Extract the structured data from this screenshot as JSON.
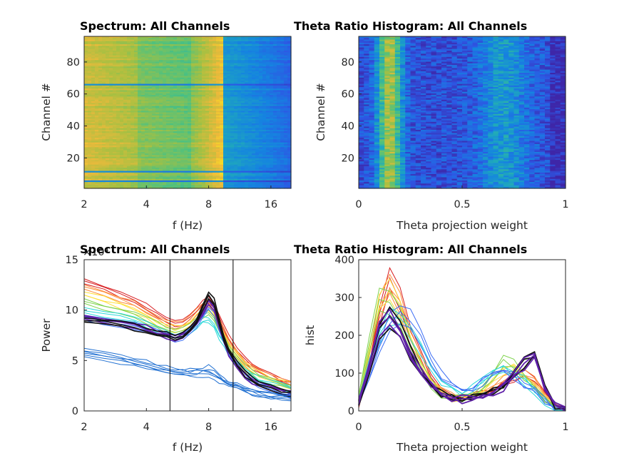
{
  "colors": {
    "axis": "#262626",
    "parula_low": "#3e26a8",
    "parula_high": "#f9fb15",
    "dim_series": "#1f6fd1",
    "marker_line": "#000000"
  },
  "chart_data": [
    {
      "type": "heatmap",
      "title": "Spectrum: All Channels",
      "xlabel": "f (Hz)",
      "ylabel": "Channel #",
      "x_scale": "log2",
      "xlim": [
        2,
        20
      ],
      "ylim": [
        1,
        96
      ],
      "x_ticks": [
        "2",
        "4",
        "8",
        "16"
      ],
      "y_ticks": [
        "20",
        "40",
        "60",
        "80"
      ],
      "colormap": "parula",
      "description_values": {
        "low_freq_band_hz": [
          2,
          3.5
        ],
        "theta_peak_hz": 8,
        "low_power_channels": [
          5,
          11,
          66
        ]
      }
    },
    {
      "type": "heatmap",
      "title": "Theta Ratio Histogram: All Channels",
      "xlabel": "Theta projection weight",
      "ylabel": "Channel #",
      "xlim": [
        0,
        1
      ],
      "ylim": [
        1,
        96
      ],
      "x_ticks": [
        "0",
        "0.5",
        "1"
      ],
      "y_ticks": [
        "20",
        "40",
        "60",
        "80"
      ],
      "colormap": "parula",
      "description_values": {
        "peak_weight": 0.15,
        "second_peak_weight": 0.85
      }
    },
    {
      "type": "line",
      "title": "Spectrum: All Channels",
      "xlabel": "f (Hz)",
      "ylabel": "Power",
      "exponent_label": "×10⁴",
      "x_scale": "log2",
      "xlim": [
        2,
        20
      ],
      "ylim": [
        0,
        150000
      ],
      "x_ticks": [
        "2",
        "4",
        "8",
        "16"
      ],
      "y_ticks": [
        "0",
        "5",
        "10",
        "15"
      ],
      "vlines_hz": [
        5.2,
        10.5
      ],
      "x": [
        2,
        2.5,
        3,
        3.5,
        4,
        4.5,
        5,
        5.5,
        6,
        6.5,
        7,
        7.5,
        8,
        8.5,
        9,
        9.5,
        10,
        11,
        12,
        13,
        14,
        16,
        18,
        20
      ],
      "series": [
        {
          "color": "#d7191c",
          "values": [
            130000,
            122000,
            116000,
            110000,
            103000,
            96000,
            90000,
            87000,
            88000,
            93000,
            100000,
            106000,
            110000,
            104000,
            92000,
            82000,
            72000,
            60000,
            50000,
            44000,
            40000,
            35000,
            31000,
            28000
          ]
        },
        {
          "color": "#fd8d3c",
          "values": [
            124000,
            117000,
            111000,
            106000,
            99000,
            93000,
            87000,
            85000,
            86000,
            91000,
            98000,
            104000,
            107000,
            101000,
            89000,
            79000,
            69000,
            57000,
            48000,
            42000,
            38000,
            33000,
            29000,
            26000
          ]
        },
        {
          "color": "#fee03b",
          "values": [
            116000,
            110000,
            105000,
            100000,
            94000,
            88000,
            83000,
            81000,
            82000,
            87000,
            93000,
            99000,
            101000,
            95000,
            84000,
            74000,
            65000,
            54000,
            45000,
            40000,
            36000,
            31000,
            28000,
            25000
          ]
        },
        {
          "color": "#7fd34e",
          "values": [
            108000,
            103000,
            99000,
            95000,
            90000,
            85000,
            80000,
            78000,
            79000,
            84000,
            90000,
            95000,
            97000,
            91000,
            80000,
            71000,
            62000,
            51000,
            43000,
            38000,
            34000,
            30000,
            27000,
            24000
          ]
        },
        {
          "color": "#2bd9d9",
          "values": [
            100000,
            96000,
            93000,
            90000,
            86000,
            81000,
            77000,
            74000,
            76000,
            80000,
            85000,
            90000,
            91000,
            85000,
            74000,
            66000,
            58000,
            48000,
            40000,
            36000,
            32000,
            28000,
            25000,
            22000
          ]
        },
        {
          "color": "#3a6cf4",
          "values": [
            92000,
            89000,
            86000,
            84000,
            81000,
            77000,
            74000,
            72000,
            74000,
            79000,
            86000,
            95000,
            103000,
            97000,
            82000,
            68000,
            57000,
            44000,
            35000,
            29000,
            25000,
            21000,
            18000,
            15000
          ]
        },
        {
          "color": "#5e1fa8",
          "values": [
            93000,
            90000,
            87000,
            85000,
            82000,
            78000,
            75000,
            73000,
            75000,
            80000,
            88000,
            98000,
            108000,
            102000,
            85000,
            70000,
            58000,
            45000,
            36000,
            30000,
            26000,
            22000,
            19000,
            16000
          ]
        },
        {
          "color": "#111111",
          "values": [
            90000,
            88000,
            86000,
            83000,
            80000,
            77000,
            75000,
            73000,
            75000,
            81000,
            90000,
            102000,
            115000,
            108000,
            88000,
            72000,
            60000,
            46000,
            37000,
            31000,
            27000,
            23000,
            20000,
            17000
          ]
        },
        {
          "color": "#1f6fd1",
          "values": [
            60000,
            57000,
            53000,
            50000,
            47000,
            44000,
            42000,
            40000,
            39000,
            39000,
            40000,
            41000,
            42000,
            39000,
            34000,
            30000,
            27000,
            24000,
            21000,
            19000,
            17000,
            15000,
            14000,
            13000
          ]
        },
        {
          "color": "#1f6fd1",
          "values": [
            55000,
            52000,
            49000,
            47000,
            44000,
            42000,
            40000,
            39000,
            38000,
            37000,
            37000,
            37000,
            36000,
            34000,
            31000,
            29000,
            27000,
            24000,
            21000,
            19000,
            17000,
            15000,
            14000,
            13000
          ]
        }
      ]
    },
    {
      "type": "line",
      "title": "Theta Ratio Histogram: All Channels",
      "xlabel": "Theta projection weight",
      "ylabel": "hist",
      "xlim": [
        0,
        1
      ],
      "ylim": [
        0,
        400
      ],
      "x_ticks": [
        "0",
        "0.5",
        "1"
      ],
      "y_ticks": [
        "0",
        "100",
        "200",
        "300",
        "400"
      ],
      "x": [
        0,
        0.05,
        0.1,
        0.15,
        0.2,
        0.25,
        0.3,
        0.35,
        0.4,
        0.45,
        0.5,
        0.55,
        0.6,
        0.65,
        0.7,
        0.75,
        0.8,
        0.85,
        0.9,
        0.95,
        1
      ],
      "series": [
        {
          "color": "#d7191c",
          "values": [
            20,
            120,
            260,
            360,
            300,
            210,
            150,
            90,
            55,
            40,
            35,
            38,
            45,
            55,
            70,
            85,
            95,
            85,
            40,
            10,
            3
          ]
        },
        {
          "color": "#fd8d3c",
          "values": [
            25,
            140,
            280,
            340,
            290,
            200,
            140,
            85,
            52,
            38,
            34,
            38,
            48,
            60,
            80,
            95,
            100,
            80,
            38,
            10,
            3
          ]
        },
        {
          "color": "#fee03b",
          "values": [
            30,
            160,
            290,
            320,
            280,
            190,
            130,
            80,
            50,
            37,
            34,
            40,
            55,
            80,
            110,
            115,
            95,
            70,
            35,
            10,
            3
          ]
        },
        {
          "color": "#7fd34e",
          "values": [
            35,
            180,
            300,
            290,
            250,
            170,
            115,
            75,
            48,
            36,
            34,
            42,
            62,
            95,
            130,
            120,
            90,
            60,
            30,
            9,
            3
          ]
        },
        {
          "color": "#2bd9d9",
          "values": [
            30,
            120,
            200,
            260,
            250,
            220,
            170,
            120,
            80,
            60,
            50,
            60,
            85,
            110,
            120,
            100,
            80,
            55,
            25,
            8,
            3
          ]
        },
        {
          "color": "#3a6cf4",
          "values": [
            25,
            90,
            170,
            240,
            260,
            250,
            200,
            140,
            95,
            70,
            60,
            65,
            80,
            100,
            110,
            95,
            70,
            50,
            25,
            8,
            3
          ]
        },
        {
          "color": "#111111",
          "values": [
            20,
            110,
            220,
            250,
            220,
            160,
            110,
            70,
            45,
            35,
            32,
            36,
            42,
            50,
            70,
            105,
            130,
            155,
            60,
            12,
            3
          ]
        },
        {
          "color": "#5e1fa8",
          "values": [
            22,
            120,
            230,
            245,
            210,
            155,
            105,
            68,
            44,
            34,
            31,
            35,
            40,
            48,
            65,
            100,
            125,
            150,
            58,
            12,
            3
          ]
        }
      ]
    }
  ]
}
